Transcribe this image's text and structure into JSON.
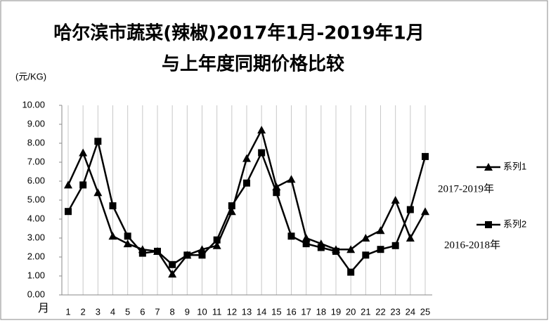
{
  "chart_data": {
    "type": "line",
    "title": "哈尔滨市蔬菜(辣椒)2017年1月-2019年1月",
    "subtitle": "与上年度同期价格比较",
    "y_axis_label": "(元/KG)",
    "x_axis_label": "月",
    "categories": [
      "1",
      "2",
      "3",
      "4",
      "5",
      "6",
      "7",
      "8",
      "9",
      "10",
      "11",
      "12",
      "13",
      "14",
      "15",
      "16",
      "17",
      "18",
      "19",
      "20",
      "21",
      "22",
      "23",
      "24",
      "25"
    ],
    "series": [
      {
        "name": "系列1",
        "color": "#000000",
        "marker": "triangle",
        "annotation": "2017-2019年",
        "values": [
          5.8,
          7.5,
          5.4,
          3.1,
          2.7,
          2.4,
          2.3,
          1.1,
          2.1,
          2.4,
          2.6,
          4.4,
          7.2,
          8.7,
          5.7,
          6.1,
          3.0,
          2.7,
          2.4,
          2.4,
          3.0,
          3.4,
          5.0,
          3.0,
          4.4
        ]
      },
      {
        "name": "系列2",
        "color": "#000000",
        "marker": "square",
        "annotation": "2016-2018年",
        "values": [
          4.4,
          5.8,
          8.1,
          4.7,
          3.1,
          2.2,
          2.3,
          1.6,
          2.1,
          2.1,
          2.9,
          4.7,
          5.9,
          7.5,
          5.4,
          3.1,
          2.7,
          2.5,
          2.3,
          1.2,
          2.1,
          2.4,
          2.6,
          4.5,
          7.3
        ]
      }
    ],
    "ylim": [
      0,
      10
    ],
    "yticks": [
      {
        "value": 0,
        "label": "0.00"
      },
      {
        "value": 1,
        "label": "1.00"
      },
      {
        "value": 2,
        "label": "2.00"
      },
      {
        "value": 3,
        "label": "3.00"
      },
      {
        "value": 4,
        "label": "4.00"
      },
      {
        "value": 5,
        "label": "5.00"
      },
      {
        "value": 6,
        "label": "6.00"
      },
      {
        "value": 7,
        "label": "7.00"
      },
      {
        "value": 8,
        "label": "8.00"
      },
      {
        "value": 9,
        "label": "9.00"
      },
      {
        "value": 10,
        "label": "10.00"
      }
    ],
    "grid": true
  }
}
